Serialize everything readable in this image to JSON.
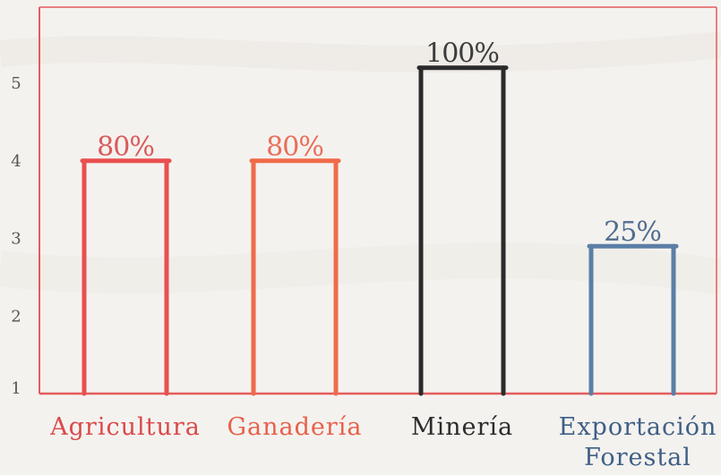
{
  "chart_data": {
    "type": "bar",
    "categories": [
      "Agricultura",
      "Ganadería",
      "Minería",
      "Exportación\nForestal"
    ],
    "category_lines": [
      [
        "Agricultura"
      ],
      [
        "Ganadería"
      ],
      [
        "Minería"
      ],
      [
        "Exportación",
        "Forestal"
      ]
    ],
    "values": [
      4,
      4,
      5.2,
      2.9
    ],
    "data_labels": [
      "80%",
      "80%",
      "100%",
      "25%"
    ],
    "bar_colors": [
      "#e8504f",
      "#f06b4a",
      "#2b2b2b",
      "#5b7ea6"
    ],
    "label_colors": [
      "#d94a4a",
      "#e8604a",
      "#2b2b2b",
      "#3e5f86"
    ],
    "axis_color": "#e45b5b",
    "yticks": [
      1,
      2,
      3,
      4,
      5
    ],
    "ylim": [
      1,
      5.8
    ],
    "grid": false,
    "title": "",
    "xlabel": "",
    "ylabel": ""
  }
}
